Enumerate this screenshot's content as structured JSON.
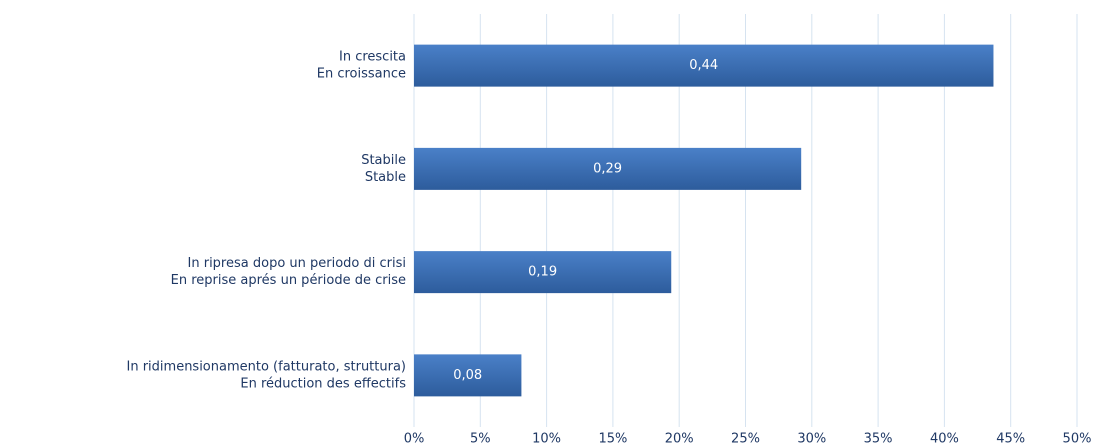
{
  "chart_data": {
    "type": "bar",
    "orientation": "horizontal",
    "categories": [
      [
        "In crescita",
        "En croissance"
      ],
      [
        "Stabile",
        "Stable"
      ],
      [
        "In ripresa dopo un periodo di crisi",
        "En reprise aprés un période de crise"
      ],
      [
        "In ridimensionamento (fatturato, struttura)",
        "En réduction des effectifs"
      ]
    ],
    "values": [
      43.7,
      29.2,
      19.4,
      8.1
    ],
    "value_labels": [
      "0,44",
      "0,29",
      "0,19",
      "0,08"
    ],
    "color": "#3a70b8",
    "xlim": [
      0,
      50
    ],
    "xticks": [
      {
        "value": 0,
        "label": "0%"
      },
      {
        "value": 5,
        "label": "5%"
      },
      {
        "value": 10,
        "label": "10%"
      },
      {
        "value": 15,
        "label": "15%"
      },
      {
        "value": 20,
        "label": "20%"
      },
      {
        "value": 25,
        "label": "25%"
      },
      {
        "value": 30,
        "label": "30%"
      },
      {
        "value": 35,
        "label": "35%"
      },
      {
        "value": 40,
        "label": "40%"
      },
      {
        "value": 45,
        "label": "45%"
      },
      {
        "value": 50,
        "label": "50%"
      }
    ],
    "grid": true
  }
}
